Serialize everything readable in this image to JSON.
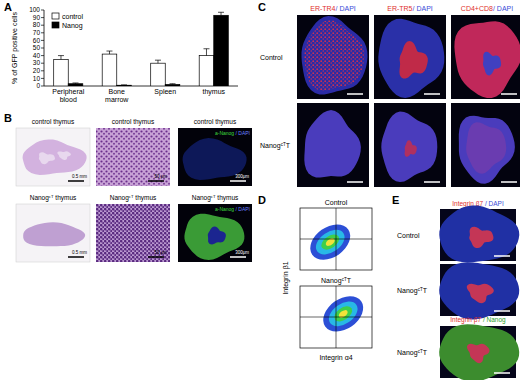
{
  "chart_data": {
    "type": "bar",
    "panel_label": "A",
    "ylabel": "% of GFP positive cells",
    "categories": [
      "Peripheral blood",
      "Bone marrow",
      "Spleen",
      "thymus"
    ],
    "series": [
      {
        "name": "control",
        "color": "#ffffff",
        "values": [
          35,
          42,
          30,
          40
        ],
        "errors": [
          5,
          4,
          4,
          9
        ]
      },
      {
        "name": "Nanog",
        "color": "#000000",
        "values": [
          3,
          1,
          2,
          93
        ],
        "errors": [
          1,
          0.5,
          1,
          4
        ]
      }
    ],
    "ylim": [
      0,
      100
    ],
    "yticks": [
      0,
      10,
      20,
      30,
      40,
      50,
      60,
      70,
      80,
      90,
      100
    ],
    "legend": "upper left",
    "grid": false
  },
  "panels": {
    "B": {
      "label": "B",
      "rows": [
        {
          "titles": [
            [
              {
                "text": "control thymus"
              }
            ],
            [
              {
                "text": "control thymus"
              }
            ],
            [
              {
                "text": "control thymus"
              }
            ]
          ],
          "stain_label": [
            {
              "text": "a-Nanog",
              "color": "#3ddc3d"
            },
            {
              "text": " / DAPI",
              "color": "#6a80ff"
            }
          ],
          "scale_bars": [
            "0.5 mm",
            "50 μm",
            "300μm"
          ]
        },
        {
          "titles": [
            [
              {
                "text": "Nanog"
              },
              {
                "text": "cT",
                "sup": true
              },
              {
                "text": " thymus"
              }
            ],
            [
              {
                "text": "Nanog"
              },
              {
                "text": "cT",
                "sup": true
              },
              {
                "text": " thymus"
              }
            ],
            [
              {
                "text": "Nanog"
              },
              {
                "text": "cT",
                "sup": true
              },
              {
                "text": " thymus"
              }
            ]
          ],
          "stain_label": [
            {
              "text": "a-Nanog",
              "color": "#3ddc3d"
            },
            {
              "text": " / DAPI",
              "color": "#6a80ff"
            }
          ],
          "scale_bars": [
            "0.5 mm",
            "50 μm",
            "300μm"
          ]
        }
      ]
    },
    "C": {
      "label": "C",
      "columns": [
        [
          {
            "text": "ER-TR4",
            "color": "#e0302c"
          },
          {
            "text": "/ DAPI",
            "color": "#3b4bd8"
          }
        ],
        [
          {
            "text": "ER-TR5",
            "color": "#e0302c"
          },
          {
            "text": "/ DAPI",
            "color": "#3b4bd8"
          }
        ],
        [
          {
            "text": "CD4+CD8",
            "color": "#e0302c"
          },
          {
            "text": "/ DAPI",
            "color": "#3b4bd8"
          }
        ]
      ],
      "rows": [
        [
          {
            "text": "Control"
          }
        ],
        [
          {
            "text": "Nanog"
          },
          {
            "text": "cT",
            "sup": true
          },
          {
            "text": "T"
          }
        ]
      ]
    },
    "D": {
      "label": "D",
      "plots": [
        [
          {
            "text": "Control"
          }
        ],
        [
          {
            "text": "Nanog"
          },
          {
            "text": "cT",
            "sup": true
          },
          {
            "text": "T"
          }
        ]
      ],
      "xlabel": "Integrin α4",
      "ylabel": "Integrin β1"
    },
    "E": {
      "label": "E",
      "blocks": [
        {
          "header": [
            {
              "text": "Integrin β7",
              "color": "#e0302c"
            },
            {
              "text": " / DAPI",
              "color": "#3b4bd8"
            }
          ],
          "rows": [
            [
              {
                "text": "Control"
              }
            ],
            [
              {
                "text": "Nanog"
              },
              {
                "text": "cT",
                "sup": true
              },
              {
                "text": "T"
              }
            ]
          ]
        },
        {
          "header": [
            {
              "text": "Integrin β7",
              "color": "#e0302c"
            },
            {
              "text": " / Nanog",
              "color": "#2aa02a"
            }
          ],
          "rows": [
            [
              {
                "text": "Nanog"
              },
              {
                "text": "cT",
                "sup": true
              },
              {
                "text": "T"
              }
            ]
          ]
        }
      ]
    }
  }
}
